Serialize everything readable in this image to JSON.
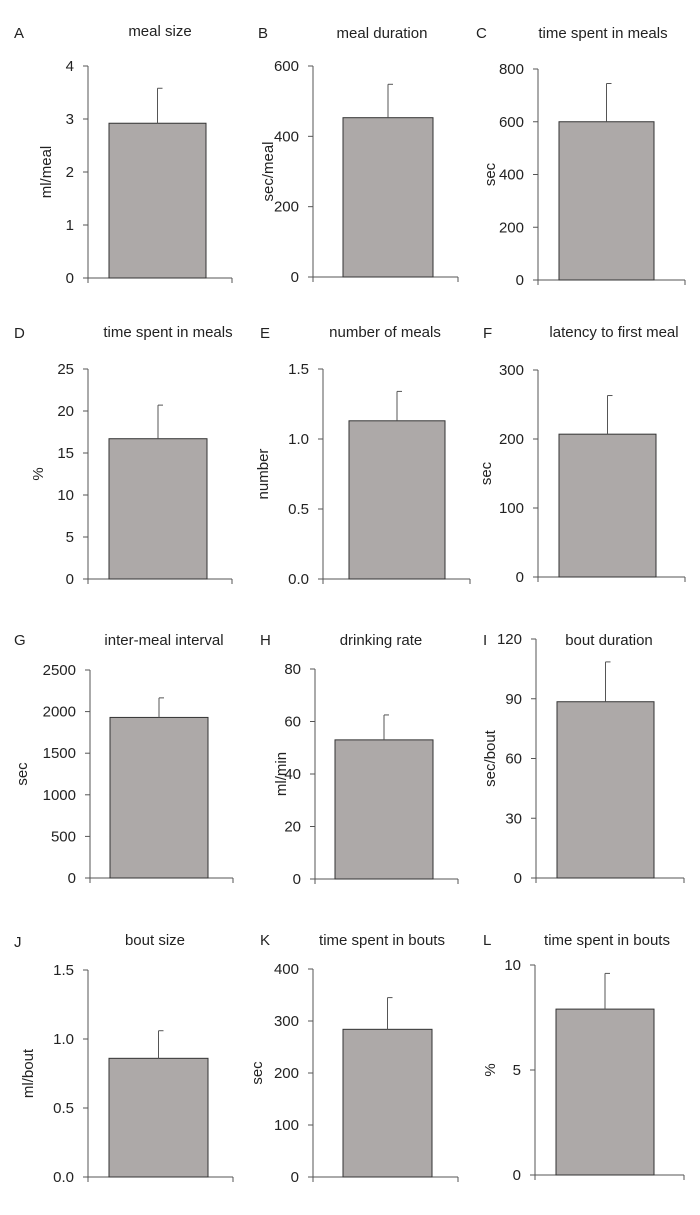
{
  "chart_data": [
    {
      "letter": "A",
      "type": "bar",
      "title": "meal size",
      "xlabel": "",
      "ylabel": "ml/meal",
      "ylim": [
        0,
        4
      ],
      "ticks": [
        0,
        1,
        2,
        3,
        4
      ],
      "tick_labels": [
        "0",
        "1",
        "2",
        "3",
        "4"
      ],
      "values": [
        2.92
      ],
      "error": [
        0.66
      ],
      "bar_color": "#ADA9A8"
    },
    {
      "letter": "B",
      "type": "bar",
      "title": "meal duration",
      "xlabel": "",
      "ylabel": "sec/meal",
      "ylim": [
        0,
        600
      ],
      "ticks": [
        0,
        200,
        400,
        600
      ],
      "tick_labels": [
        "0",
        "200",
        "400",
        "600"
      ],
      "values": [
        453
      ],
      "error": [
        95
      ],
      "bar_color": "#ADA9A8"
    },
    {
      "letter": "C",
      "type": "bar",
      "title": "time spent in meals",
      "xlabel": "",
      "ylabel": "sec",
      "ylim": [
        0,
        800
      ],
      "ticks": [
        0,
        200,
        400,
        600,
        800
      ],
      "tick_labels": [
        "0",
        "200",
        "400",
        "600",
        "800"
      ],
      "values": [
        600
      ],
      "error": [
        145
      ],
      "bar_color": "#ADA9A8"
    },
    {
      "letter": "D",
      "type": "bar",
      "title": "time spent in meals",
      "xlabel": "",
      "ylabel": "%",
      "ylim": [
        0,
        25
      ],
      "ticks": [
        0,
        5,
        10,
        15,
        20,
        25
      ],
      "tick_labels": [
        "0",
        "5",
        "10",
        "15",
        "20",
        "25"
      ],
      "values": [
        16.7
      ],
      "error": [
        4.0
      ],
      "bar_color": "#ADA9A8"
    },
    {
      "letter": "E",
      "type": "bar",
      "title": "number of meals",
      "xlabel": "",
      "ylabel": "number",
      "ylim": [
        0,
        1.5
      ],
      "ticks": [
        0,
        0.5,
        1.0,
        1.5
      ],
      "tick_labels": [
        "0.0",
        "0.5",
        "1.0",
        "1.5"
      ],
      "values": [
        1.13
      ],
      "error": [
        0.21
      ],
      "bar_color": "#ADA9A8"
    },
    {
      "letter": "F",
      "type": "bar",
      "title": "latency to first meal",
      "xlabel": "",
      "ylabel": "sec",
      "ylim": [
        0,
        300
      ],
      "ticks": [
        0,
        100,
        200,
        300
      ],
      "tick_labels": [
        "0",
        "100",
        "200",
        "300"
      ],
      "values": [
        207
      ],
      "error": [
        56
      ],
      "bar_color": "#ADA9A8"
    },
    {
      "letter": "G",
      "type": "bar",
      "title": "inter-meal interval",
      "xlabel": "",
      "ylabel": "sec",
      "ylim": [
        0,
        2500
      ],
      "ticks": [
        0,
        500,
        1000,
        1500,
        2000,
        2500
      ],
      "tick_labels": [
        "0",
        "500",
        "1000",
        "1500",
        "2000",
        "2500"
      ],
      "values": [
        1930
      ],
      "error": [
        235
      ],
      "bar_color": "#ADA9A8"
    },
    {
      "letter": "H",
      "type": "bar",
      "title": "drinking rate",
      "xlabel": "",
      "ylabel": "ml/min",
      "ylim": [
        0,
        80
      ],
      "ticks": [
        0,
        20,
        40,
        60,
        80
      ],
      "tick_labels": [
        "0",
        "20",
        "40",
        "60",
        "80"
      ],
      "values": [
        53
      ],
      "error": [
        9.5
      ],
      "bar_color": "#ADA9A8"
    },
    {
      "letter": "I",
      "type": "bar",
      "title": "bout duration",
      "xlabel": "",
      "ylabel": "sec/bout",
      "ylim": [
        0,
        120
      ],
      "ticks": [
        0,
        30,
        60,
        90,
        120
      ],
      "tick_labels": [
        "0",
        "30",
        "60",
        "90",
        "120"
      ],
      "values": [
        88.5
      ],
      "error": [
        20
      ],
      "bar_color": "#ADA9A8"
    },
    {
      "letter": "J",
      "type": "bar",
      "title": "bout size",
      "xlabel": "",
      "ylabel": "ml/bout",
      "ylim": [
        0,
        1.5
      ],
      "ticks": [
        0,
        0.5,
        1.0,
        1.5
      ],
      "tick_labels": [
        "0.0",
        "0.5",
        "1.0",
        "1.5"
      ],
      "values": [
        0.86
      ],
      "error": [
        0.2
      ],
      "bar_color": "#ADA9A8"
    },
    {
      "letter": "K",
      "type": "bar",
      "title": "time spent in bouts",
      "xlabel": "",
      "ylabel": "sec",
      "ylim": [
        0,
        400
      ],
      "ticks": [
        0,
        100,
        200,
        300,
        400
      ],
      "tick_labels": [
        "0",
        "100",
        "200",
        "300",
        "400"
      ],
      "values": [
        284
      ],
      "error": [
        61
      ],
      "bar_color": "#ADA9A8"
    },
    {
      "letter": "L",
      "type": "bar",
      "title": "time spent in bouts",
      "xlabel": "",
      "ylabel": "%",
      "ylim": [
        0,
        10
      ],
      "ticks": [
        0,
        5,
        10
      ],
      "tick_labels": [
        "0",
        "5",
        "10"
      ],
      "values": [
        7.9
      ],
      "error": [
        1.7
      ],
      "bar_color": "#ADA9A8"
    }
  ]
}
